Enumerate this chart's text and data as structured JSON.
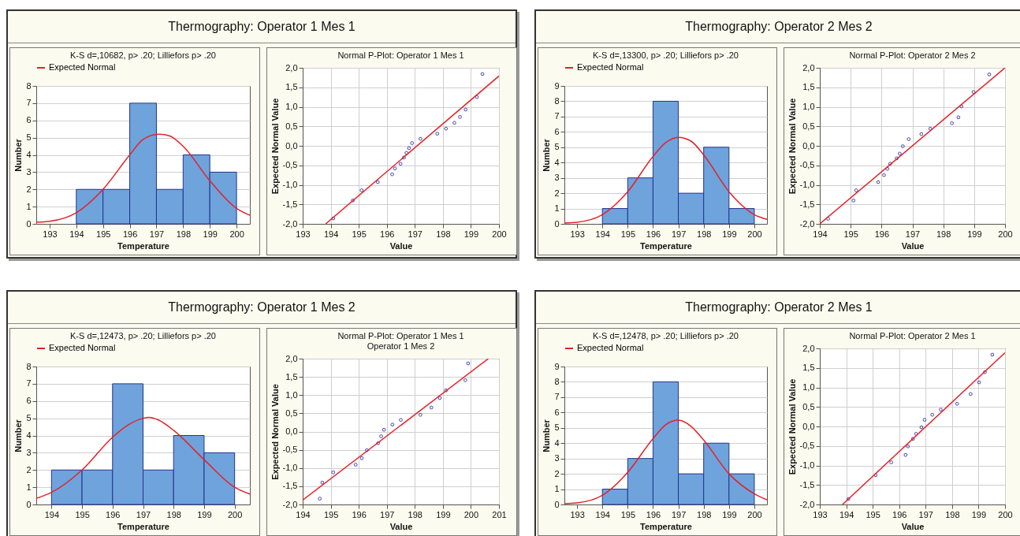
{
  "chart_data": [
    {
      "type": "histogram",
      "title": "Thermography: Operator 1 Mes 1",
      "subtitle": "K-S d=,10682, p> .20; Lilliefors p> .20",
      "xlabel": "Temperature",
      "ylabel": "Number",
      "bins": [
        194,
        195,
        196,
        197,
        198,
        199,
        200
      ],
      "values": [
        2,
        2,
        7,
        2,
        4,
        3
      ],
      "color": "#6fa3dc",
      "xlim": [
        192.5,
        200.5
      ],
      "xticks": [
        193,
        194,
        195,
        196,
        197,
        198,
        199,
        200
      ],
      "ylim": [
        0,
        8
      ],
      "yticks": [
        0,
        1,
        2,
        3,
        4,
        5,
        6,
        7,
        8
      ],
      "grid": "y",
      "legend": "top",
      "series": [
        {
          "name": "Expected Normal",
          "type": "line",
          "color": "#e32227",
          "x": [
            192.5,
            193,
            194,
            195,
            196,
            196.5,
            197.1,
            197.5,
            198,
            199,
            200,
            200.5
          ],
          "values": [
            0.1,
            0.15,
            0.65,
            2.0,
            4.0,
            4.9,
            5.2,
            5.1,
            4.5,
            2.5,
            0.9,
            0.5
          ]
        }
      ]
    },
    {
      "type": "scatter",
      "title": "Normal P-Plot: Operator 1 Mes 1",
      "xlabel": "Value",
      "ylabel": "Expected Normal Value",
      "xlim": [
        193,
        200
      ],
      "xticks": [
        193,
        194,
        195,
        196,
        197,
        198,
        199,
        200
      ],
      "ylim": [
        -2,
        2
      ],
      "yticks": [
        {
          "value": -2,
          "label": "-2,0"
        },
        {
          "value": -1.5,
          "label": "-1,5"
        },
        {
          "value": -1,
          "label": "-1,0"
        },
        {
          "value": -0.5,
          "label": "-0,5"
        },
        {
          "value": 0,
          "label": "0,0"
        },
        {
          "value": 0.5,
          "label": "0,5"
        },
        {
          "value": 1,
          "label": "1,0"
        },
        {
          "value": 1.5,
          "label": "1,5"
        },
        {
          "value": 2,
          "label": "2,0"
        }
      ],
      "grid": true,
      "series": [
        {
          "type": "scatter",
          "marker": "circle",
          "color": "#4444b4",
          "x": [
            194.09,
            194.79,
            195.1,
            195.68,
            196.19,
            196.29,
            196.49,
            196.61,
            196.7,
            196.79,
            196.9,
            197.2,
            197.8,
            198.11,
            198.41,
            198.61,
            198.81,
            199.21,
            199.41
          ],
          "values": [
            -1.86,
            -1.4,
            -1.14,
            -0.93,
            -0.73,
            -0.58,
            -0.46,
            -0.3,
            -0.18,
            -0.06,
            0.07,
            0.18,
            0.31,
            0.44,
            0.59,
            0.74,
            0.93,
            1.25,
            1.84
          ]
        },
        {
          "type": "line",
          "color": "#e32227",
          "x": [
            193.82,
            200
          ],
          "values": [
            -2.0,
            1.79
          ]
        }
      ]
    },
    {
      "type": "histogram",
      "title": "Thermography: Operator 2 Mes 2",
      "subtitle": "K-S d=,13300, p> .20; Lilliefors p> .20",
      "xlabel": "Temperature",
      "ylabel": "Number",
      "bins": [
        194,
        195,
        196,
        197,
        198,
        199,
        200
      ],
      "values": [
        1,
        3,
        8,
        2,
        5,
        1
      ],
      "color": "#6fa3dc",
      "xlim": [
        192.5,
        200.5
      ],
      "xticks": [
        193,
        194,
        195,
        196,
        197,
        198,
        199,
        200
      ],
      "ylim": [
        0,
        9
      ],
      "yticks": [
        0,
        1,
        2,
        3,
        4,
        5,
        6,
        7,
        8,
        9
      ],
      "grid": "y",
      "legend": "top",
      "series": [
        {
          "name": "Expected Normal",
          "type": "line",
          "color": "#e32227",
          "x": [
            192.5,
            193,
            194,
            195,
            196,
            196.5,
            197,
            197.5,
            198,
            199,
            200,
            200.5
          ],
          "values": [
            0.05,
            0.1,
            0.6,
            2.1,
            4.4,
            5.3,
            5.65,
            5.4,
            4.5,
            2.1,
            0.6,
            0.3
          ]
        }
      ]
    },
    {
      "type": "scatter",
      "title": "Normal P-Plot: Operator 2 Mes 2",
      "xlabel": "Value",
      "ylabel": "Expected Normal Value",
      "xlim": [
        194,
        200
      ],
      "xticks": [
        194,
        195,
        196,
        197,
        198,
        199,
        200
      ],
      "ylim": [
        -2,
        2
      ],
      "yticks": [
        {
          "value": -2,
          "label": "-2,0"
        },
        {
          "value": -1.5,
          "label": "-1,5"
        },
        {
          "value": -1,
          "label": "-1,0"
        },
        {
          "value": -0.5,
          "label": "-0,5"
        },
        {
          "value": 0,
          "label": "0,0"
        },
        {
          "value": 0.5,
          "label": "0,5"
        },
        {
          "value": 1,
          "label": "1,0"
        },
        {
          "value": 1.5,
          "label": "1,5"
        },
        {
          "value": 2,
          "label": "2,0"
        }
      ],
      "grid": true,
      "series": [
        {
          "type": "scatter",
          "marker": "circle",
          "color": "#4444b4",
          "x": [
            194.27,
            195.09,
            195.18,
            195.89,
            196.08,
            196.19,
            196.28,
            196.49,
            196.59,
            196.69,
            196.88,
            197.29,
            197.58,
            198.28,
            198.49,
            198.59,
            198.98,
            199.49
          ],
          "values": [
            -1.87,
            -1.4,
            -1.14,
            -0.93,
            -0.75,
            -0.59,
            -0.46,
            -0.32,
            -0.2,
            -0.01,
            0.17,
            0.3,
            0.44,
            0.58,
            0.73,
            1.01,
            1.38,
            1.83
          ]
        },
        {
          "type": "line",
          "color": "#e32227",
          "x": [
            194,
            200
          ],
          "values": [
            -2.0,
            2.0
          ]
        }
      ]
    },
    {
      "type": "histogram",
      "title": "Thermography: Operator 1 Mes 2",
      "subtitle": "K-S d=,12473, p> .20; Lilliefors p> .20",
      "xlabel": "Temperature",
      "ylabel": "Number",
      "bins": [
        194,
        195,
        196,
        197,
        198,
        199,
        200
      ],
      "values": [
        2,
        2,
        7,
        2,
        4,
        3
      ],
      "color": "#6fa3dc",
      "xlim": [
        193.5,
        200.5
      ],
      "xticks": [
        194,
        195,
        196,
        197,
        198,
        199,
        200
      ],
      "ylim": [
        0,
        8
      ],
      "yticks": [
        0,
        1,
        2,
        3,
        4,
        5,
        6,
        7,
        8
      ],
      "grid": "y",
      "legend": "top",
      "series": [
        {
          "name": "Expected Normal",
          "type": "line",
          "color": "#e32227",
          "x": [
            193.5,
            194,
            195,
            196,
            196.5,
            197,
            197.2,
            197.5,
            198,
            199,
            200,
            200.5
          ],
          "values": [
            0.35,
            0.7,
            2.0,
            3.9,
            4.6,
            5.0,
            5.05,
            4.9,
            4.3,
            2.6,
            1.0,
            0.6
          ]
        }
      ]
    },
    {
      "type": "scatter",
      "title": "Normal P-Plot: Operator 1 Mes 1\nOperator 1 Mes 2",
      "xlabel": "Value",
      "ylabel": "Expected Normal Value",
      "xlim": [
        194,
        201
      ],
      "xticks": [
        194,
        195,
        196,
        197,
        198,
        199,
        200,
        201
      ],
      "ylim": [
        -2,
        2
      ],
      "yticks": [
        {
          "value": -2,
          "label": "-2,0"
        },
        {
          "value": -1.5,
          "label": "-1,5"
        },
        {
          "value": -1,
          "label": "-1,0"
        },
        {
          "value": -0.5,
          "label": "-0,5"
        },
        {
          "value": 0,
          "label": "0,0"
        },
        {
          "value": 0.5,
          "label": "0,5"
        },
        {
          "value": 1,
          "label": "1,0"
        },
        {
          "value": 1.5,
          "label": "1,5"
        },
        {
          "value": 2,
          "label": "2,0"
        }
      ],
      "grid": true,
      "series": [
        {
          "type": "scatter",
          "marker": "circle",
          "color": "#4444b4",
          "x": [
            194.61,
            194.7,
            195.09,
            195.89,
            196.11,
            196.29,
            196.69,
            196.8,
            196.9,
            197.2,
            197.5,
            198.2,
            198.59,
            198.89,
            199.11,
            199.8,
            199.9
          ],
          "values": [
            -1.84,
            -1.4,
            -1.12,
            -0.91,
            -0.73,
            -0.51,
            -0.32,
            -0.13,
            0.05,
            0.19,
            0.32,
            0.46,
            0.66,
            0.92,
            1.13,
            1.41,
            1.87
          ]
        },
        {
          "type": "line",
          "color": "#e32227",
          "x": [
            194,
            200.62
          ],
          "values": [
            -1.88,
            2.0
          ]
        }
      ]
    },
    {
      "type": "histogram",
      "title": "Thermography: Operator 2 Mes 1",
      "subtitle": "K-S d=,12478, p> .20; Lilliefors p> .20",
      "xlabel": "Temperature",
      "ylabel": "Number",
      "bins": [
        194,
        195,
        196,
        197,
        198,
        199,
        200
      ],
      "values": [
        1,
        3,
        8,
        2,
        4,
        2
      ],
      "color": "#6fa3dc",
      "xlim": [
        192.5,
        200.5
      ],
      "xticks": [
        193,
        194,
        195,
        196,
        197,
        198,
        199,
        200
      ],
      "ylim": [
        0,
        9
      ],
      "yticks": [
        0,
        1,
        2,
        3,
        4,
        5,
        6,
        7,
        8,
        9
      ],
      "grid": "y",
      "legend": "top",
      "series": [
        {
          "name": "Expected Normal",
          "type": "line",
          "color": "#e32227",
          "x": [
            192.5,
            193,
            194,
            195,
            196,
            196.5,
            197,
            197.5,
            198,
            199,
            200,
            200.5
          ],
          "values": [
            0.05,
            0.1,
            0.6,
            2.1,
            4.3,
            5.2,
            5.5,
            5.1,
            4.2,
            2.0,
            0.7,
            0.3
          ]
        }
      ]
    },
    {
      "type": "scatter",
      "title": "Normal P-Plot: Operator 2 Mes 1",
      "xlabel": "Value",
      "ylabel": "Expected Normal Value",
      "xlim": [
        193,
        200
      ],
      "xticks": [
        193,
        194,
        195,
        196,
        197,
        198,
        199,
        200
      ],
      "ylim": [
        -2,
        2
      ],
      "yticks": [
        {
          "value": -2,
          "label": "-2,0"
        },
        {
          "value": -1.5,
          "label": "-1,5"
        },
        {
          "value": -1,
          "label": "-1,0"
        },
        {
          "value": -0.5,
          "label": "-0,5"
        },
        {
          "value": 0,
          "label": "0,0"
        },
        {
          "value": 0.5,
          "label": "0,5"
        },
        {
          "value": 1,
          "label": "1,0"
        },
        {
          "value": 1.5,
          "label": "1,5"
        },
        {
          "value": 2,
          "label": "2,0"
        }
      ],
      "grid": true,
      "series": [
        {
          "type": "scatter",
          "marker": "circle",
          "color": "#4444b4",
          "x": [
            194.08,
            195.11,
            195.7,
            196.24,
            196.33,
            196.52,
            196.64,
            196.84,
            196.96,
            197.25,
            197.57,
            198.19,
            198.7,
            199.02,
            199.24,
            199.52
          ],
          "values": [
            -1.86,
            -1.25,
            -0.92,
            -0.73,
            -0.51,
            -0.32,
            -0.19,
            -0.02,
            0.17,
            0.3,
            0.43,
            0.58,
            0.83,
            1.13,
            1.39,
            1.84
          ]
        },
        {
          "type": "line",
          "color": "#e32227",
          "x": [
            193.86,
            200
          ],
          "values": [
            -2.0,
            1.89
          ]
        }
      ]
    }
  ]
}
